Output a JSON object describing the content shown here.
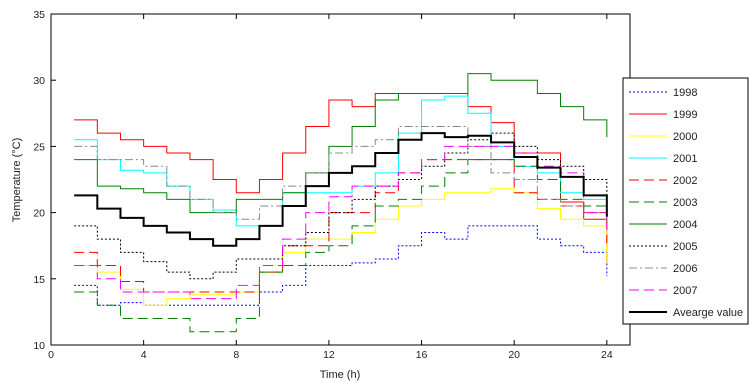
{
  "chart_data": {
    "type": "line",
    "step": true,
    "xlabel": "Time (h)",
    "ylabel": "Temperature (°C)",
    "xlim": [
      0,
      25
    ],
    "ylim": [
      10,
      35
    ],
    "xticks": [
      0,
      4,
      8,
      12,
      16,
      20,
      24
    ],
    "yticks": [
      10,
      15,
      20,
      25,
      30,
      35
    ],
    "grid": false,
    "legend": "right",
    "x": [
      1,
      2,
      3,
      4,
      5,
      6,
      7,
      8,
      9,
      10,
      11,
      12,
      13,
      14,
      15,
      16,
      17,
      18,
      19,
      20,
      21,
      22,
      23,
      24
    ],
    "series": [
      {
        "name": "1998",
        "color": "#0000ff",
        "dash": "2,2",
        "width": 1,
        "values": [
          14.5,
          13,
          13.2,
          13,
          13,
          13,
          13,
          13,
          14,
          14.5,
          16,
          16,
          16.2,
          16.5,
          17.5,
          18.5,
          18,
          19,
          19,
          19,
          18,
          17.5,
          17,
          16
        ]
      },
      {
        "name": "1999",
        "color": "#ff0000",
        "dash": "",
        "width": 1,
        "values": [
          27,
          26,
          25.5,
          25,
          24.5,
          24,
          22.5,
          21.5,
          22.5,
          24.5,
          26.5,
          28.5,
          28,
          29,
          29,
          29,
          29,
          28,
          26.8,
          24.5,
          24.5,
          20.8,
          19.5,
          17
        ]
      },
      {
        "name": "2000",
        "color": "#ffff00",
        "dash": "",
        "width": 1,
        "values": [
          16,
          15.5,
          14.2,
          13,
          13.5,
          13.8,
          13.8,
          14,
          15.5,
          17,
          18,
          18,
          18.5,
          19.5,
          20.5,
          21,
          21.5,
          21.5,
          21.8,
          21.5,
          20.3,
          19.5,
          19,
          17
        ]
      },
      {
        "name": "2001",
        "color": "#00ffff",
        "dash": "",
        "width": 1,
        "values": [
          25.5,
          24,
          23.2,
          23,
          22,
          21,
          20.2,
          19,
          19,
          21.5,
          21.5,
          21.5,
          22,
          23,
          26,
          28.5,
          28.8,
          27.5,
          25,
          23.5,
          23,
          21.5,
          21,
          20
        ]
      },
      {
        "name": "2002",
        "color": "#ff0000",
        "dash": "10,5",
        "width": 1,
        "values": [
          17,
          16,
          14.8,
          14,
          14,
          14,
          14,
          14,
          15.5,
          17.5,
          17.5,
          20,
          20,
          21.5,
          23,
          24,
          24,
          24,
          24,
          21.5,
          21,
          20.5,
          20,
          18.5
        ]
      },
      {
        "name": "2003",
        "color": "#008000",
        "dash": "10,5",
        "width": 1,
        "values": [
          14,
          13,
          12,
          12,
          12,
          11,
          11,
          12,
          15.5,
          16,
          17,
          17.5,
          19,
          20.5,
          21,
          22,
          23,
          24,
          24,
          23.5,
          22.5,
          21,
          20.5,
          20
        ]
      },
      {
        "name": "2004",
        "color": "#008000",
        "dash": "",
        "width": 1,
        "values": [
          24,
          22,
          21.8,
          21.5,
          21,
          20,
          20,
          21,
          21,
          21.5,
          23,
          25,
          26.5,
          28.5,
          29,
          29,
          29,
          30.5,
          30,
          30,
          29,
          28,
          27,
          26.5
        ]
      },
      {
        "name": "2005",
        "color": "#000000",
        "dash": "2,2",
        "width": 1,
        "values": [
          19,
          18,
          17,
          16.3,
          15.5,
          15,
          15.5,
          16.5,
          16.5,
          17.5,
          18.5,
          20,
          21,
          22,
          22.5,
          23.5,
          24.5,
          25.5,
          26,
          25,
          24,
          23.5,
          22.5,
          21
        ]
      },
      {
        "name": "2006",
        "color": "#888888",
        "dash": "8,3,2,3",
        "width": 1,
        "values": [
          25,
          24,
          24,
          23.5,
          22,
          21,
          20,
          19.5,
          20.5,
          22,
          23,
          24.5,
          25,
          25.5,
          26.5,
          26.5,
          26.5,
          25,
          23,
          22.5,
          21,
          20.5,
          20,
          19.5
        ]
      },
      {
        "name": "2007",
        "color": "#ff00ff",
        "dash": "10,5",
        "width": 1,
        "values": [
          16,
          15,
          14,
          14,
          14,
          13.5,
          13.5,
          14.5,
          16,
          18,
          20,
          21.2,
          22,
          22,
          23,
          24,
          25,
          25,
          25,
          24.5,
          23.5,
          23,
          20,
          19.5
        ]
      },
      {
        "name": "Avearge value",
        "color": "#000000",
        "dash": "",
        "width": 2,
        "values": [
          21.3,
          20.3,
          19.6,
          19,
          18.5,
          18,
          17.5,
          18,
          19,
          20.5,
          22,
          23,
          23.5,
          24.5,
          25.5,
          26,
          25.7,
          25.8,
          25.3,
          24.2,
          23.4,
          22.7,
          21.3,
          20.5
        ]
      }
    ]
  }
}
